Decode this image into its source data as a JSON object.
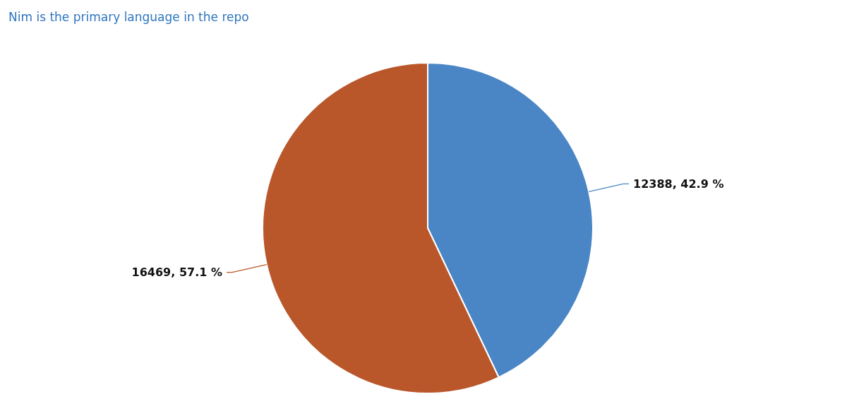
{
  "chart_data": {
    "type": "pie",
    "title": "Nim is the primary language in the repo",
    "categories": [
      null,
      null
    ],
    "values": [
      12388,
      16469
    ],
    "colors": [
      "#4a86c5",
      "#b9572a"
    ],
    "value_labels": [
      "12388, 42.9 %",
      "16469, 57.1 %"
    ],
    "legend": false
  }
}
